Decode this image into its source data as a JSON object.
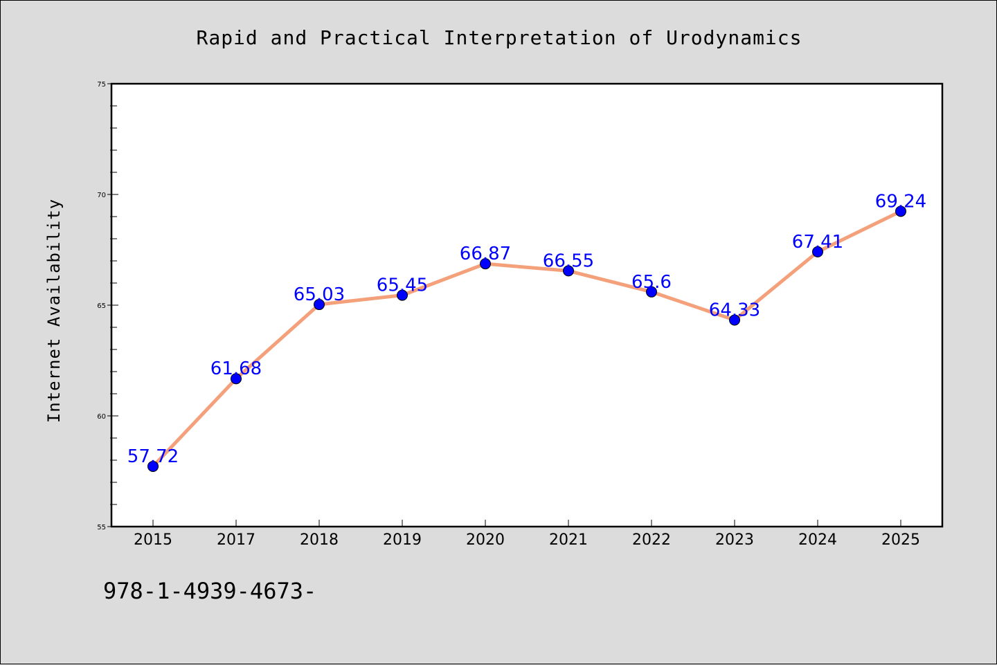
{
  "chart_data": {
    "type": "line",
    "title": "Rapid and Practical Interpretation of Urodynamics",
    "xlabel": "",
    "ylabel": "Internet Availability",
    "categories": [
      "2015",
      "2017",
      "2018",
      "2019",
      "2020",
      "2021",
      "2022",
      "2023",
      "2024",
      "2025"
    ],
    "values": [
      57.72,
      61.68,
      65.03,
      65.45,
      66.87,
      66.55,
      65.6,
      64.33,
      67.41,
      69.24
    ],
    "data_labels": [
      "57.72",
      "61.68",
      "65.03",
      "65.45",
      "66.87",
      "66.55",
      "65.6",
      "64.33",
      "67.41",
      "69.24"
    ],
    "ylim": [
      55,
      75
    ],
    "yticks": [
      55,
      60,
      65,
      70,
      75
    ],
    "grid": false,
    "legend": "none",
    "line_color": "#f4a07a",
    "marker_color": "#0000ff",
    "label_color": "#0000ff"
  },
  "footer": {
    "text": "978-1-4939-4673-"
  }
}
